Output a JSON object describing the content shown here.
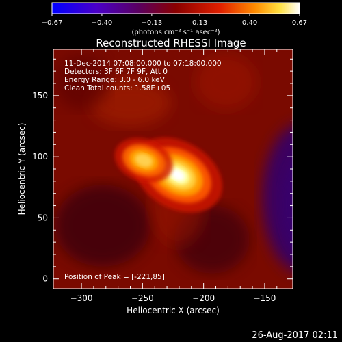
{
  "chart_data": {
    "type": "heatmap",
    "title": "Reconstructed RHESSI Image",
    "xlabel": "Heliocentric X (arcsec)",
    "ylabel": "Heliocentric Y (arcsec)",
    "xlim": [
      -323,
      -127
    ],
    "ylim": [
      -8,
      188
    ],
    "x_ticks": [
      -300,
      -250,
      -200,
      -150
    ],
    "x_tick_labels": [
      "−300",
      "−250",
      "−200",
      "−150"
    ],
    "y_ticks": [
      0,
      50,
      100,
      150
    ],
    "y_tick_labels": [
      "0",
      "50",
      "100",
      "150"
    ],
    "colorbar": {
      "range": [
        -0.67,
        0.67
      ],
      "ticks": [
        -0.67,
        -0.4,
        -0.13,
        0.13,
        0.4,
        0.67
      ],
      "tick_labels": [
        "−0.67",
        "−0.40",
        "−0.13",
        "0.13",
        "0.40",
        "0.67"
      ],
      "unit_label": "(photons cm⁻² s⁻¹ asec⁻²)",
      "colors": [
        "#0000ff",
        "#5000a0",
        "#8a0000",
        "#e02000",
        "#ff8c00",
        "#ffff60",
        "#ffffff"
      ]
    },
    "annotations": [
      "11-Dec-2014 07:08:00.000 to 07:18:00.000",
      "Detectors: 3F 6F 7F 9F, Att 0",
      "Energy Range: 3.0 - 6.0 keV",
      "Clean    Total counts: 1.58E+05"
    ],
    "peak_text": "Position of Peak = [-221,85]",
    "sources": [
      {
        "x": -221,
        "y": 85,
        "intensity": 0.67,
        "sigma": 9
      },
      {
        "x": -249,
        "y": 97,
        "intensity": 0.45,
        "sigma": 7
      }
    ],
    "background_level": 0.12,
    "dark_region": {
      "x": -135,
      "y": 55,
      "intensity": -0.2
    }
  },
  "timestamp": "26-Aug-2017 02:11"
}
